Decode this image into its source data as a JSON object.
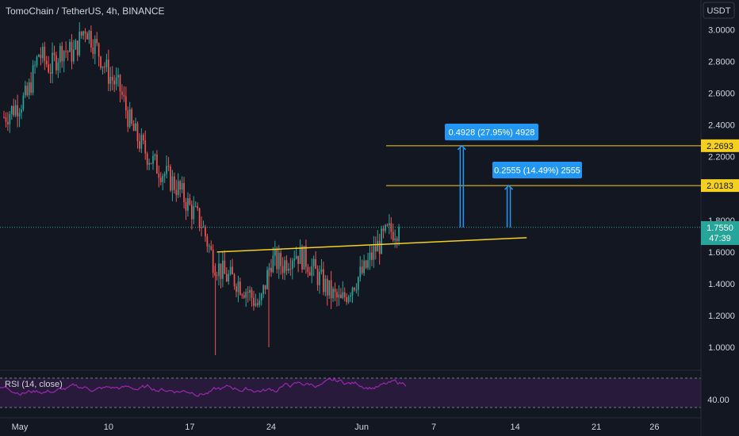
{
  "header": {
    "symbol_title": "TomoChain / TetherUS, 4h, BINANCE"
  },
  "price_axis": {
    "currency_button": "USDT",
    "ticks": [
      "3.0000",
      "2.8000",
      "2.6000",
      "2.4000",
      "2.2000",
      "1.8000",
      "1.6000",
      "1.4000",
      "1.2000",
      "1.0000"
    ],
    "tick_values": [
      3.0,
      2.8,
      2.6,
      2.4,
      2.2,
      1.8,
      1.6,
      1.4,
      1.2,
      1.0
    ]
  },
  "time_axis": {
    "ticks": [
      "May",
      "10",
      "17",
      "24",
      "Jun",
      "7",
      "14",
      "21",
      "26"
    ]
  },
  "price_labels": {
    "level_upper": "2.2693",
    "level_lower": "2.0183",
    "last_price": "1.7550",
    "countdown": "47:39"
  },
  "measurements": {
    "upper": "0.4928 (27.95%) 4928",
    "lower": "0.2555 (14.49%) 2555"
  },
  "rsi": {
    "label": "RSI (14, close)",
    "tick": "40.00"
  },
  "colors": {
    "background": "#131722",
    "up_candle": "#26a69a",
    "down_candle": "#ef5350",
    "trendline": "#f5d020",
    "level_line": "#f5d020",
    "measure": "#2196f3",
    "rsi_line": "#9c27b0",
    "axis_text": "#d1d4dc"
  },
  "chart_data": {
    "type": "candlestick",
    "title": "TomoChain / TetherUS, 4h, BINANCE",
    "ylim": [
      0.92,
      3.08
    ],
    "y_scale": "linear",
    "grid": false,
    "last_price": 1.755,
    "horizontal_levels": [
      2.2693,
      2.0183
    ],
    "trendline": {
      "from": {
        "x": "May 19",
        "y": 1.6
      },
      "to": {
        "x": "Jun 15",
        "y": 1.69
      }
    },
    "price_path": [
      {
        "x": "May 1",
        "y": 2.45
      },
      {
        "x": "May 3",
        "y": 2.58
      },
      {
        "x": "May 4",
        "y": 2.85
      },
      {
        "x": "May 5",
        "y": 2.76
      },
      {
        "x": "May 6",
        "y": 2.88
      },
      {
        "x": "May 7",
        "y": 2.85
      },
      {
        "x": "May 8",
        "y": 3.02
      },
      {
        "x": "May 9",
        "y": 2.88
      },
      {
        "x": "May 10",
        "y": 2.72
      },
      {
        "x": "May 11",
        "y": 2.62
      },
      {
        "x": "May 12",
        "y": 2.38
      },
      {
        "x": "May 13",
        "y": 2.25
      },
      {
        "x": "May 14",
        "y": 2.15
      },
      {
        "x": "May 15",
        "y": 2.08
      },
      {
        "x": "May 16",
        "y": 2.0
      },
      {
        "x": "May 17",
        "y": 1.88
      },
      {
        "x": "May 18",
        "y": 1.78
      },
      {
        "x": "May 19",
        "y": 1.55
      },
      {
        "x": "May 20",
        "y": 1.45
      },
      {
        "x": "May 21",
        "y": 1.42
      },
      {
        "x": "May 22",
        "y": 1.35
      },
      {
        "x": "May 23",
        "y": 1.25
      },
      {
        "x": "May 24",
        "y": 1.55
      },
      {
        "x": "May 25",
        "y": 1.52
      },
      {
        "x": "May 26",
        "y": 1.6
      },
      {
        "x": "May 27",
        "y": 1.55
      },
      {
        "x": "May 28",
        "y": 1.45
      },
      {
        "x": "May 29",
        "y": 1.35
      },
      {
        "x": "May 30",
        "y": 1.28
      },
      {
        "x": "May 31",
        "y": 1.4
      },
      {
        "x": "Jun 1",
        "y": 1.48
      },
      {
        "x": "Jun 2",
        "y": 1.62
      },
      {
        "x": "Jun 3",
        "y": 1.72
      },
      {
        "x": "Jun 4",
        "y": 1.755
      }
    ],
    "rsi": {
      "period": 14,
      "reference_level": 40.0
    }
  }
}
